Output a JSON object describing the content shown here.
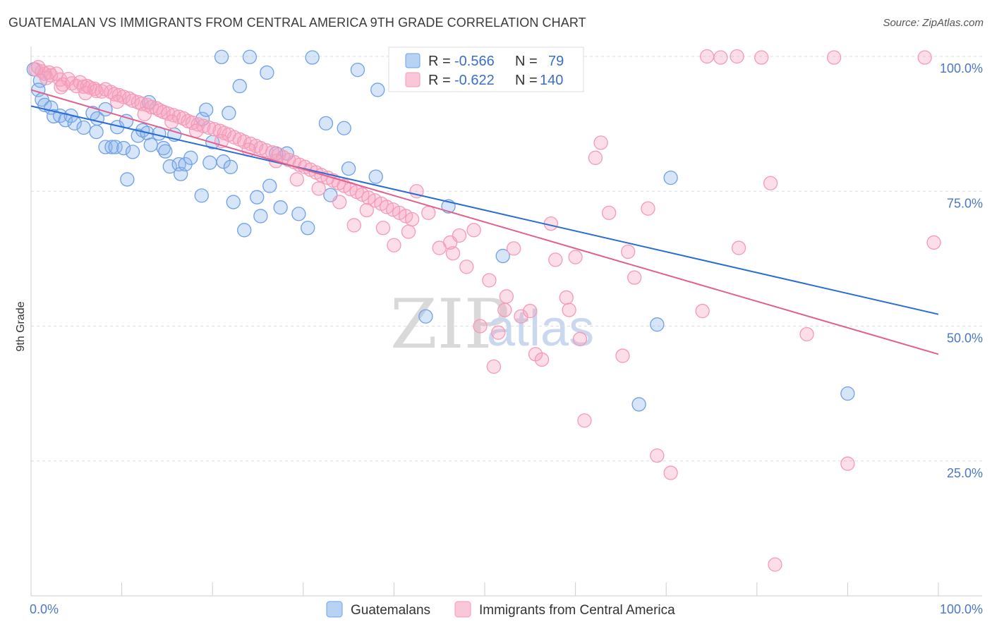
{
  "header": {
    "title": "GUATEMALAN VS IMMIGRANTS FROM CENTRAL AMERICA 9TH GRADE CORRELATION CHART",
    "source": "Source: ZipAtlas.com"
  },
  "watermark": {
    "zip": "ZIP",
    "atlas": "atlas"
  },
  "chart_data": {
    "type": "scatter",
    "title": "GUATEMALAN VS IMMIGRANTS FROM CENTRAL AMERICA 9TH GRADE CORRELATION CHART",
    "xlabel": "",
    "ylabel": "9th Grade",
    "xlim": [
      0,
      100
    ],
    "ylim": [
      0,
      100
    ],
    "x_ticks": [
      0,
      10,
      20,
      30,
      40,
      50,
      60,
      70,
      80,
      90,
      100
    ],
    "x_tick_labels": {
      "min": "0.0%",
      "max": "100.0%"
    },
    "y_ticks": [
      100,
      75,
      50,
      25
    ],
    "y_tick_labels": [
      "100.0%",
      "75.0%",
      "50.0%",
      "25.0%"
    ],
    "grid": "horizontal dashed",
    "legend_placement": "top-center inset and bottom",
    "series": [
      {
        "name": "Guatemalans",
        "color": "#6fa0e8",
        "line_color": "#2a6dd2",
        "stats": {
          "r_label": "R =",
          "r": "-0.566",
          "n_label": "N =",
          "n": "79"
        },
        "trend": {
          "x": [
            0,
            100
          ],
          "y": [
            90.8,
            52.2
          ]
        },
        "points": [
          [
            0.3,
            97.6
          ],
          [
            1.0,
            95.5
          ],
          [
            0.8,
            93.8
          ],
          [
            1.2,
            92.0
          ],
          [
            1.5,
            91.0
          ],
          [
            2.2,
            90.5
          ],
          [
            2.5,
            88.9
          ],
          [
            3.2,
            89.0
          ],
          [
            3.8,
            88.2
          ],
          [
            4.4,
            89.0
          ],
          [
            4.8,
            87.6
          ],
          [
            5.8,
            86.8
          ],
          [
            6.8,
            89.5
          ],
          [
            7.2,
            86.0
          ],
          [
            7.3,
            88.5
          ],
          [
            8.2,
            90.2
          ],
          [
            8.2,
            83.2
          ],
          [
            8.9,
            83.2
          ],
          [
            9.3,
            83.2
          ],
          [
            9.5,
            86.9
          ],
          [
            10.2,
            83.0
          ],
          [
            10.5,
            88.0
          ],
          [
            10.6,
            77.2
          ],
          [
            11.2,
            82.3
          ],
          [
            11.8,
            85.3
          ],
          [
            12.3,
            86.3
          ],
          [
            12.8,
            85.8
          ],
          [
            13.0,
            91.5
          ],
          [
            13.2,
            83.6
          ],
          [
            14.1,
            85.7
          ],
          [
            14.6,
            83.0
          ],
          [
            14.8,
            82.4
          ],
          [
            15.3,
            79.6
          ],
          [
            15.8,
            85.5
          ],
          [
            16.3,
            80.0
          ],
          [
            16.5,
            78.2
          ],
          [
            17.0,
            80.0
          ],
          [
            17.6,
            81.2
          ],
          [
            18.8,
            74.2
          ],
          [
            18.9,
            88.4
          ],
          [
            19.3,
            90.1
          ],
          [
            19.7,
            80.3
          ],
          [
            20.0,
            84.1
          ],
          [
            21.0,
            99.9
          ],
          [
            21.2,
            80.5
          ],
          [
            21.8,
            89.5
          ],
          [
            22.0,
            79.5
          ],
          [
            22.3,
            73.0
          ],
          [
            23.0,
            94.5
          ],
          [
            23.5,
            67.8
          ],
          [
            24.1,
            99.9
          ],
          [
            24.9,
            73.9
          ],
          [
            25.3,
            70.4
          ],
          [
            26.0,
            97.0
          ],
          [
            26.3,
            76.0
          ],
          [
            27.0,
            82.0
          ],
          [
            27.5,
            72.0
          ],
          [
            28.2,
            82.0
          ],
          [
            29.5,
            70.8
          ],
          [
            30.5,
            68.2
          ],
          [
            31.0,
            99.8
          ],
          [
            32.5,
            87.6
          ],
          [
            33.0,
            74.3
          ],
          [
            34.5,
            86.7
          ],
          [
            35.0,
            79.2
          ],
          [
            36.0,
            97.5
          ],
          [
            38.0,
            77.7
          ],
          [
            38.2,
            93.8
          ],
          [
            43.5,
            51.8
          ],
          [
            46.0,
            72.2
          ],
          [
            52.0,
            63.0
          ],
          [
            56.5,
            100.1
          ],
          [
            58.0,
            99.8
          ],
          [
            67.0,
            35.5
          ],
          [
            69.0,
            50.3
          ],
          [
            70.5,
            77.5
          ],
          [
            90.0,
            37.5
          ]
        ]
      },
      {
        "name": "Immigrants from Central America",
        "color": "#f49ab8",
        "line_color": "#e0608f",
        "stats": {
          "r_label": "R =",
          "r": "-0.622",
          "n_label": "N =",
          "n": "140"
        },
        "trend": {
          "x": [
            0,
            100
          ],
          "y": [
            93.8,
            44.8
          ]
        },
        "points": [
          [
            0.5,
            97.6
          ],
          [
            0.8,
            98.0
          ],
          [
            1.2,
            97.2
          ],
          [
            1.5,
            96.8
          ],
          [
            2.0,
            97.0
          ],
          [
            2.2,
            96.5
          ],
          [
            2.8,
            96.8
          ],
          [
            3.2,
            95.7
          ],
          [
            3.5,
            94.8
          ],
          [
            4.1,
            95.8
          ],
          [
            4.5,
            95.0
          ],
          [
            5.0,
            94.5
          ],
          [
            5.4,
            95.2
          ],
          [
            5.8,
            94.4
          ],
          [
            6.2,
            94.5
          ],
          [
            6.5,
            94.2
          ],
          [
            7.0,
            94.0
          ],
          [
            7.2,
            93.6
          ],
          [
            7.8,
            93.5
          ],
          [
            8.2,
            93.9
          ],
          [
            8.8,
            93.4
          ],
          [
            9.2,
            93.0
          ],
          [
            9.7,
            92.8
          ],
          [
            10.2,
            92.5
          ],
          [
            10.8,
            92.2
          ],
          [
            11.2,
            91.8
          ],
          [
            11.8,
            91.5
          ],
          [
            12.2,
            91.2
          ],
          [
            12.8,
            91.0
          ],
          [
            13.3,
            90.6
          ],
          [
            13.8,
            90.4
          ],
          [
            14.2,
            90.0
          ],
          [
            14.6,
            89.7
          ],
          [
            15.1,
            89.4
          ],
          [
            15.7,
            89.1
          ],
          [
            16.3,
            88.8
          ],
          [
            16.8,
            88.5
          ],
          [
            17.3,
            88.0
          ],
          [
            17.8,
            87.7
          ],
          [
            18.4,
            87.4
          ],
          [
            19.0,
            87.1
          ],
          [
            19.6,
            86.8
          ],
          [
            20.2,
            86.5
          ],
          [
            20.8,
            86.2
          ],
          [
            21.3,
            85.8
          ],
          [
            21.8,
            85.5
          ],
          [
            22.4,
            85.0
          ],
          [
            23.0,
            84.6
          ],
          [
            23.5,
            84.2
          ],
          [
            24.2,
            83.8
          ],
          [
            24.8,
            83.4
          ],
          [
            25.3,
            83.0
          ],
          [
            25.9,
            82.6
          ],
          [
            26.6,
            82.2
          ],
          [
            27.3,
            81.8
          ],
          [
            27.8,
            81.3
          ],
          [
            28.4,
            80.8
          ],
          [
            29.0,
            80.4
          ],
          [
            29.6,
            79.9
          ],
          [
            30.2,
            79.5
          ],
          [
            30.8,
            79.0
          ],
          [
            31.4,
            78.5
          ],
          [
            32.0,
            78.0
          ],
          [
            32.7,
            77.5
          ],
          [
            33.3,
            77.0
          ],
          [
            33.9,
            76.5
          ],
          [
            34.5,
            76.0
          ],
          [
            35.2,
            75.4
          ],
          [
            35.9,
            74.9
          ],
          [
            36.5,
            74.4
          ],
          [
            37.2,
            73.8
          ],
          [
            37.9,
            73.3
          ],
          [
            38.6,
            72.7
          ],
          [
            39.2,
            72.1
          ],
          [
            39.9,
            71.6
          ],
          [
            40.6,
            71.0
          ],
          [
            41.3,
            70.4
          ],
          [
            42.0,
            69.8
          ],
          [
            1.7,
            96.0
          ],
          [
            3.3,
            94.3
          ],
          [
            6.0,
            93.2
          ],
          [
            9.5,
            91.6
          ],
          [
            12.5,
            89.3
          ],
          [
            15.5,
            87.9
          ],
          [
            18.2,
            86.2
          ],
          [
            21.0,
            84.3
          ],
          [
            24.0,
            82.7
          ],
          [
            27.0,
            80.6
          ],
          [
            29.3,
            77.2
          ],
          [
            31.7,
            75.5
          ],
          [
            34.0,
            73.0
          ],
          [
            35.6,
            68.7
          ],
          [
            37.0,
            71.5
          ],
          [
            38.8,
            68.2
          ],
          [
            40.0,
            65.0
          ],
          [
            41.6,
            67.5
          ],
          [
            42.5,
            75.0
          ],
          [
            43.8,
            71.0
          ],
          [
            45.0,
            64.5
          ],
          [
            46.2,
            65.5
          ],
          [
            46.5,
            63.5
          ],
          [
            47.2,
            66.8
          ],
          [
            48.0,
            61.0
          ],
          [
            48.8,
            67.8
          ],
          [
            49.5,
            50.0
          ],
          [
            50.5,
            58.5
          ],
          [
            51.0,
            42.5
          ],
          [
            51.5,
            48.8
          ],
          [
            52.2,
            53.0
          ],
          [
            52.4,
            55.5
          ],
          [
            53.2,
            64.4
          ],
          [
            54.0,
            51.8
          ],
          [
            55.0,
            52.8
          ],
          [
            55.6,
            44.8
          ],
          [
            56.3,
            43.8
          ],
          [
            57.3,
            69.0
          ],
          [
            57.8,
            62.3
          ],
          [
            59.0,
            55.3
          ],
          [
            59.3,
            53.0
          ],
          [
            60.0,
            62.8
          ],
          [
            60.5,
            47.6
          ],
          [
            61.0,
            32.5
          ],
          [
            62.2,
            81.2
          ],
          [
            62.8,
            84.0
          ],
          [
            63.7,
            71.0
          ],
          [
            65.2,
            44.5
          ],
          [
            65.8,
            63.8
          ],
          [
            66.5,
            59.0
          ],
          [
            68.0,
            71.8
          ],
          [
            69.0,
            26.0
          ],
          [
            70.5,
            22.8
          ],
          [
            74.0,
            52.8
          ],
          [
            74.5,
            100.0
          ],
          [
            76.0,
            99.8
          ],
          [
            77.8,
            100.0
          ],
          [
            78.0,
            64.5
          ],
          [
            80.5,
            99.8
          ],
          [
            81.5,
            76.5
          ],
          [
            82.0,
            5.8
          ],
          [
            85.5,
            48.5
          ],
          [
            88.5,
            99.8
          ],
          [
            90.0,
            24.5
          ],
          [
            98.5,
            99.8
          ],
          [
            99.5,
            65.5
          ]
        ]
      }
    ]
  },
  "legend": {
    "bottom": [
      {
        "name": "Guatemalans",
        "color": "#6fa0e8"
      },
      {
        "name": "Immigrants from Central America",
        "color": "#f49ab8"
      }
    ]
  }
}
